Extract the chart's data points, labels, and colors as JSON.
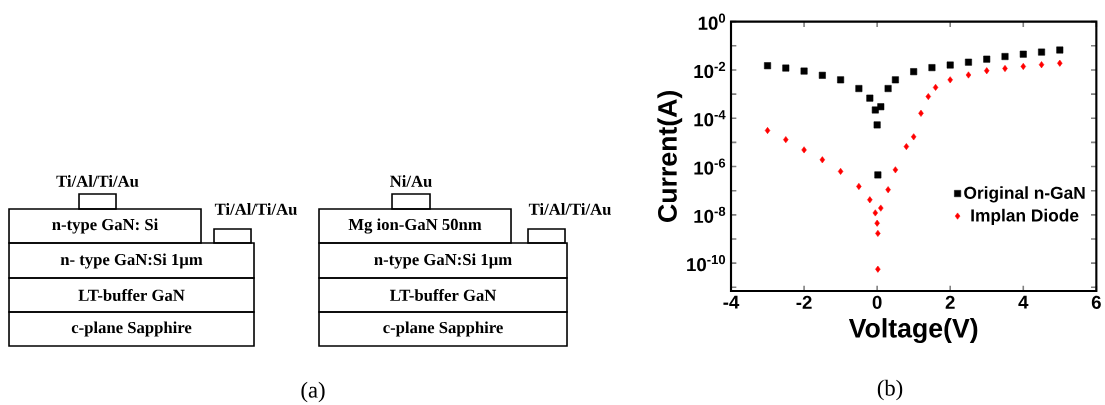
{
  "chart_data": [
    {
      "type": "other",
      "annotations": [
        "Ti/Al/Ti/Au",
        "n-type GaN: Si",
        "Ti/Al/Ti/Au",
        "n- type GaN:Si 1µm",
        "LT-buffer GaN",
        "c-plane Sapphire",
        "Ni/Au",
        "Mg ion-GaN 50nm",
        "Ti/Al/Ti/Au",
        "n-type GaN:Si 1µm",
        "LT-buffer GaN",
        "c-plane Sapphire",
        "(a)"
      ]
    },
    {
      "type": "scatter",
      "xlabel": "Voltage(V)",
      "ylabel": "Current(A)",
      "annotations": [
        "(b)"
      ],
      "log": "y",
      "legend": "right",
      "grid": false,
      "xlim": [
        -4,
        6
      ],
      "xticks": [
        -4,
        -2,
        0,
        2,
        4,
        6
      ],
      "ylim": [
        7e-12,
        1
      ],
      "yticks": [
        {
          "value": 1,
          "label": "10$^{0}$"
        },
        {
          "value": 0.1,
          "label": null
        },
        {
          "value": 0.01,
          "label": "10$^{-2}$"
        },
        {
          "value": 0.001,
          "label": null
        },
        {
          "value": 0.0001,
          "label": "10$^{-4}$"
        },
        {
          "value": 1e-05,
          "label": null
        },
        {
          "value": 1e-06,
          "label": "10$^{-6}$"
        },
        {
          "value": 1e-07,
          "label": null
        },
        {
          "value": 1e-08,
          "label": "10$^{-8}$"
        },
        {
          "value": 1e-09,
          "label": null
        },
        {
          "value": 1e-10,
          "label": "10$^{-10}$"
        },
        {
          "value": 1e-11,
          "label": null
        }
      ],
      "series": [
        {
          "name": "Original n-GaN",
          "color": "#000000",
          "marker": "square",
          "x": [
            -3,
            -2.5,
            -2,
            -1.5,
            -1,
            -0.5,
            -0.2,
            -0.05,
            0,
            0.02,
            0.1,
            0.3,
            0.5,
            1,
            1.5,
            2,
            2.5,
            3,
            3.5,
            4,
            4.5,
            5
          ],
          "values": [
            0.015,
            0.012,
            0.009,
            0.006,
            0.0039,
            0.0017,
            0.00068,
            0.00022,
            5.3e-05,
            4.5e-07,
            0.0003,
            0.0017,
            0.0039,
            0.0085,
            0.0125,
            0.016,
            0.021,
            0.028,
            0.036,
            0.045,
            0.055,
            0.067
          ]
        },
        {
          "name": "Implan Diode",
          "color": "#ff0000",
          "marker": "diamond",
          "x": [
            -3,
            -2.5,
            -2,
            -1.5,
            -1,
            -0.5,
            -0.2,
            -0.05,
            0,
            0.02,
            0.02,
            0.1,
            0.3,
            0.5,
            0.8,
            1,
            1.2,
            1.4,
            1.6,
            2,
            2.5,
            3,
            3.5,
            4,
            4.5,
            5
          ],
          "values": [
            3.1e-05,
            1.3e-05,
            4.9e-06,
            1.9e-06,
            6.3e-07,
            1.5e-07,
            4.2e-08,
            1.2e-08,
            4.5e-09,
            1.7e-09,
            5.6e-11,
            1.9e-08,
            1.1e-07,
            7.3e-07,
            6.7e-06,
            1.7e-05,
            0.00016,
            0.00079,
            0.0019,
            0.0039,
            0.0062,
            0.0093,
            0.0115,
            0.014,
            0.0165,
            0.019
          ]
        }
      ]
    }
  ]
}
